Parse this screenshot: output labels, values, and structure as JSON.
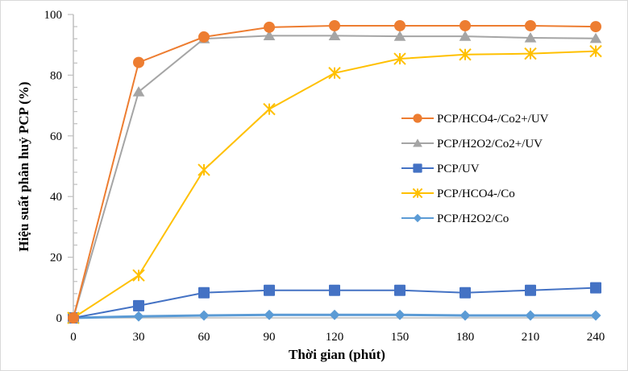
{
  "chart_data": {
    "type": "line",
    "title": "",
    "xlabel": "Thời gian (phút)",
    "ylabel": "Hiệu suất phân huỷ PCP (%)",
    "x": [
      0,
      30,
      60,
      90,
      120,
      150,
      180,
      210,
      240
    ],
    "x_tick_labels": [
      "0",
      "30",
      "60",
      "90",
      "120",
      "150",
      "180",
      "210",
      "240"
    ],
    "y_tick_labels": [
      "0",
      "20",
      "40",
      "60",
      "80",
      "100"
    ],
    "ylim": [
      0,
      100
    ],
    "xlim": [
      0,
      240
    ],
    "y_major_step": 20,
    "y_minor_step": 4,
    "grid": false,
    "legend_position": "right-middle",
    "series": [
      {
        "name": "PCP/HCO4-/Co2+/UV",
        "color": "#ED7D31",
        "marker": "circle",
        "values": [
          0,
          84.2,
          92.6,
          95.8,
          96.3,
          96.3,
          96.3,
          96.3,
          96.0
        ]
      },
      {
        "name": "PCP/H2O2/Co2+/UV",
        "color": "#A5A5A5",
        "marker": "triangle",
        "values": [
          0,
          74.5,
          92.0,
          93.0,
          93.0,
          92.8,
          92.8,
          92.3,
          92.1
        ]
      },
      {
        "name": "PCP/UV",
        "color": "#4472C4",
        "marker": "square",
        "values": [
          0,
          4.0,
          8.3,
          9.1,
          9.1,
          9.1,
          8.3,
          9.1,
          9.9
        ]
      },
      {
        "name": "PCP/HCO4-/Co",
        "color": "#FFC000",
        "marker": "star",
        "values": [
          0,
          14.0,
          48.8,
          68.8,
          80.7,
          85.4,
          86.8,
          87.1,
          87.9
        ]
      },
      {
        "name": "PCP/H2O2/Co",
        "color": "#5B9BD5",
        "marker": "diamond",
        "values": [
          0,
          0.5,
          0.8,
          1.0,
          1.0,
          1.0,
          0.8,
          0.8,
          0.8
        ]
      }
    ]
  }
}
